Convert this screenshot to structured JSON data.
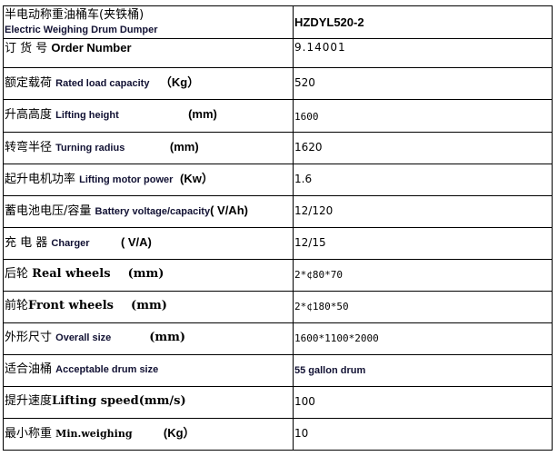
{
  "rows": [
    {
      "cn": "半电动称重油桶车(夹铁桶)",
      "en": "Electric Weighing Drum Dumper",
      "unit": "",
      "value": "HZDYL520-2"
    },
    {
      "cn": "订 货 号 ",
      "en": "Order Number",
      "unit": "",
      "value": "9.14001"
    },
    {
      "cn": "额定载荷 ",
      "en": "Rated load capacity",
      "unit": "（Kg）",
      "value": "520"
    },
    {
      "cn": "升高高度 ",
      "en": "Lifting height",
      "unit": "(mm)",
      "value": "1600"
    },
    {
      "cn": "转弯半径 ",
      "en": "Turning radius",
      "unit": "(mm)",
      "value": "1620"
    },
    {
      "cn": "起升电机功率 ",
      "en": "Lifting motor power",
      "unit": "(Kw）",
      "value": "1.6"
    },
    {
      "cn": "蓄电池电压/容量 ",
      "en": "Battery voltage/capacity",
      "unit": "( V/Ah)",
      "value": "12/120"
    },
    {
      "cn": "充 电 器 ",
      "en": "Charger",
      "unit": "( V/A)",
      "value": "12/15"
    },
    {
      "cn": "后轮 ",
      "en": "Real wheels",
      "unit": "(mm)",
      "value": "2*¢80*70"
    },
    {
      "cn": "前轮",
      "en": "Front wheels",
      "unit": "(mm)",
      "value": "2*¢180*50"
    },
    {
      "cn": "外形尺寸 ",
      "en": "Overall size",
      "unit": "(mm)",
      "value": "1600*1100*2000"
    },
    {
      "cn": "适合油桶 ",
      "en": "Acceptable drum size",
      "unit": "",
      "value": "55 gallon drum"
    },
    {
      "cn": "提升速度",
      "en": "Lifting speed",
      "unit": "(mm/s)",
      "value": "100"
    },
    {
      "cn": "最小称重 ",
      "en": "Min.weighing",
      "unit": "(Kg）",
      "value": "10"
    }
  ]
}
